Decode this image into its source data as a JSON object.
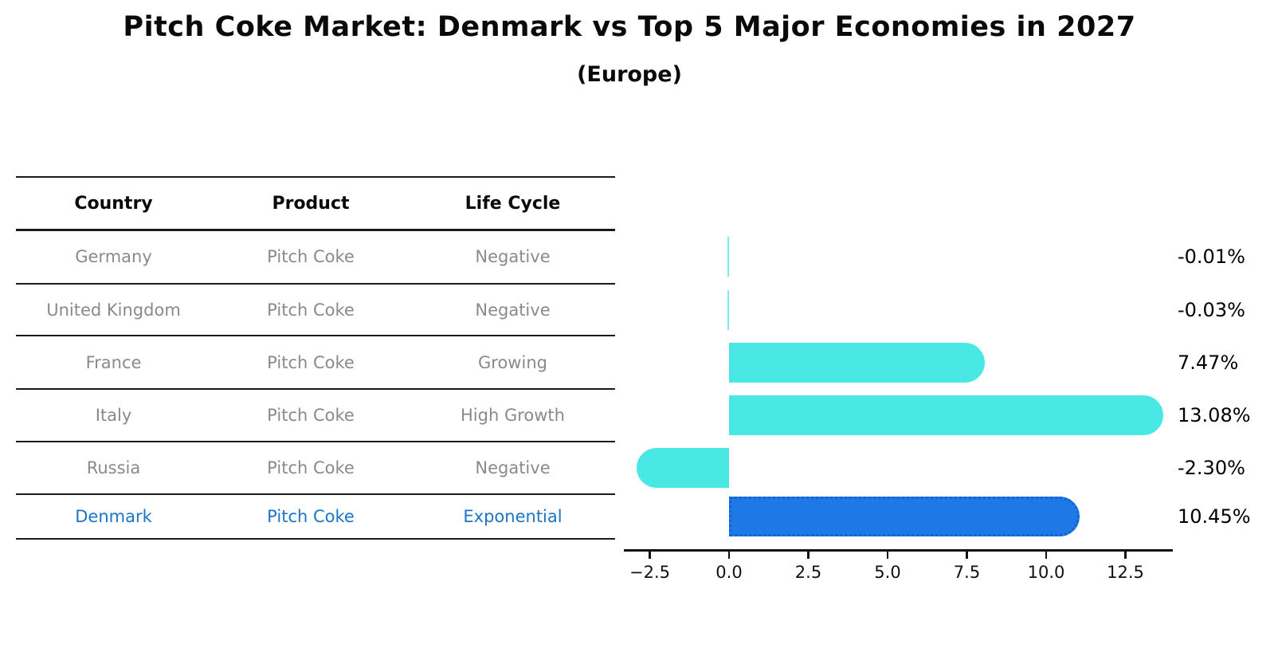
{
  "title": "Pitch Coke Market: Denmark vs Top 5 Major Economies in 2027",
  "subtitle": "(Europe)",
  "table": {
    "headers": [
      "Country",
      "Product",
      "Life Cycle"
    ],
    "rows": [
      {
        "country": "Germany",
        "product": "Pitch Coke",
        "life_cycle": "Negative",
        "highlight": false
      },
      {
        "country": "United Kingdom",
        "product": "Pitch Coke",
        "life_cycle": "Negative",
        "highlight": false
      },
      {
        "country": "France",
        "product": "Pitch Coke",
        "life_cycle": "Growing",
        "highlight": false
      },
      {
        "country": "Italy",
        "product": "Pitch Coke",
        "life_cycle": "High Growth",
        "highlight": false
      },
      {
        "country": "Russia",
        "product": "Pitch Coke",
        "life_cycle": "Negative",
        "highlight": false
      },
      {
        "country": "Denmark",
        "product": "Pitch Coke",
        "life_cycle": "Exponential",
        "highlight": true
      }
    ]
  },
  "chart_data": {
    "type": "bar",
    "orientation": "horizontal",
    "title": "Pitch Coke Market: Denmark vs Top 5 Major Economies in 2027",
    "subtitle": "(Europe)",
    "categories": [
      "Germany",
      "United Kingdom",
      "France",
      "Italy",
      "Russia",
      "Denmark"
    ],
    "values": [
      -0.01,
      -0.03,
      7.47,
      13.08,
      -2.3,
      10.45
    ],
    "value_labels": [
      "-0.01%",
      "-0.03%",
      "7.47%",
      "13.08%",
      "-2.30%",
      "10.45%"
    ],
    "x_ticks": [
      -2.5,
      0.0,
      2.5,
      5.0,
      7.5,
      10.0,
      12.5
    ],
    "x_tick_labels": [
      "−2.5",
      "0.0",
      "2.5",
      "5.0",
      "7.5",
      "10.0",
      "12.5"
    ],
    "xlim": [
      -3.3,
      14.0
    ],
    "grid": false,
    "legend": "none",
    "highlight_index": 5,
    "colors": {
      "bar": "#4AE8E4",
      "highlight_bar": "#1E78E6",
      "highlight_border": "#0D64D8",
      "highlight_text": "#1B74C5",
      "row_text": "#8A8A8A",
      "axis": "#111111"
    }
  }
}
